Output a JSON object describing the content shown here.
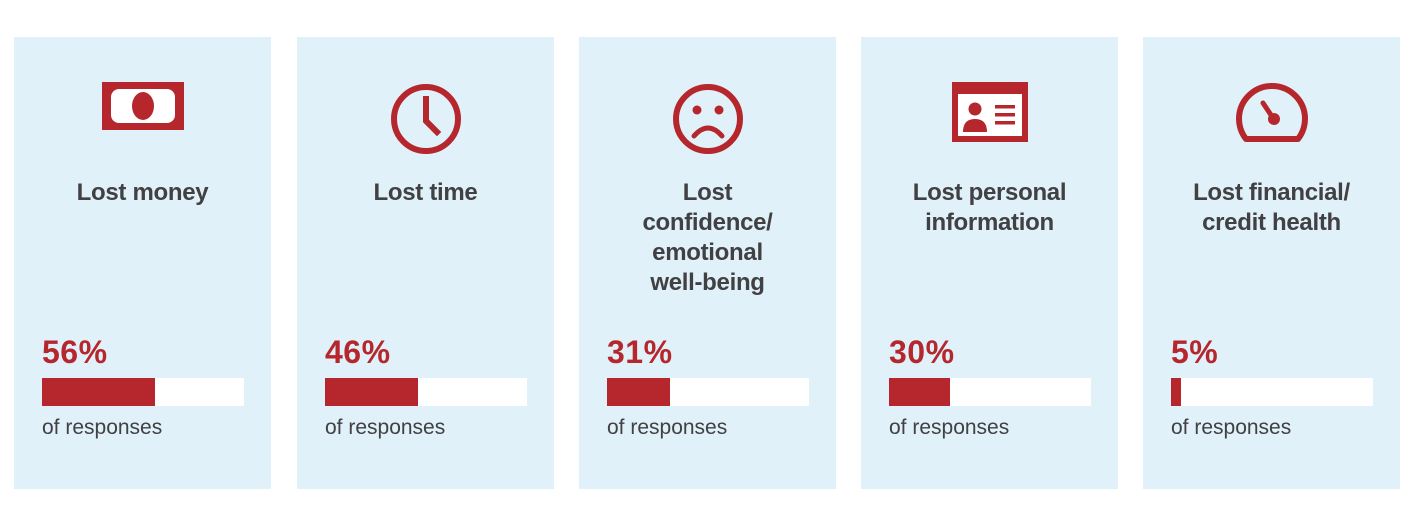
{
  "colors": {
    "accent": "#b5272d",
    "card_bg": "#e0f1f9",
    "text": "#414042",
    "track": "#ffffff"
  },
  "chart_data": {
    "type": "bar",
    "categories": [
      "Lost money",
      "Lost time",
      "Lost confidence/ emotional well-being",
      "Lost personal information",
      "Lost financial/ credit health"
    ],
    "values": [
      56,
      46,
      31,
      30,
      5
    ],
    "ylim": [
      0,
      100
    ],
    "unit": "%"
  },
  "cards": [
    {
      "icon": "money-bill-icon",
      "label_lines": [
        "Lost money"
      ],
      "pct": "56%",
      "value": 56,
      "caption": "of responses"
    },
    {
      "icon": "clock-icon",
      "label_lines": [
        "Lost time"
      ],
      "pct": "46%",
      "value": 46,
      "caption": "of responses"
    },
    {
      "icon": "sad-face-icon",
      "label_lines": [
        "Lost",
        "confidence/",
        "emotional",
        "well-being"
      ],
      "pct": "31%",
      "value": 31,
      "caption": "of responses"
    },
    {
      "icon": "id-card-icon",
      "label_lines": [
        "Lost personal",
        "information"
      ],
      "pct": "30%",
      "value": 30,
      "caption": "of responses"
    },
    {
      "icon": "gauge-icon",
      "label_lines": [
        "Lost financial/",
        "credit health"
      ],
      "pct": "5%",
      "value": 5,
      "caption": "of responses"
    }
  ]
}
